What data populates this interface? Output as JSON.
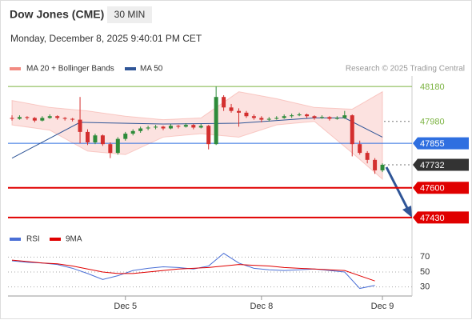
{
  "chart_data": {
    "type": "candlestick",
    "title": "Dow Jones (CME)",
    "timeframe": "30 MIN",
    "subtitle": "Monday, December 8, 2025 9:40:01 PM CET",
    "credit": "Research © 2025 Trading Central",
    "ylim": [
      47370,
      48240
    ],
    "up_color": "#2e8b3a",
    "down_color": "#d32f2f",
    "ohlc": [
      [
        48000,
        48015,
        47985,
        47995
      ],
      [
        47995,
        48015,
        47990,
        48005
      ],
      [
        48005,
        48010,
        47990,
        48000
      ],
      [
        48000,
        48005,
        47975,
        47985
      ],
      [
        47985,
        48010,
        47980,
        48000
      ],
      [
        48000,
        48020,
        47995,
        48010
      ],
      [
        48010,
        48015,
        47990,
        48000
      ],
      [
        48000,
        48005,
        47985,
        47995
      ],
      [
        47995,
        48000,
        47980,
        47990
      ],
      [
        47990,
        48120,
        47855,
        47920
      ],
      [
        47920,
        47935,
        47845,
        47860
      ],
      [
        47860,
        47910,
        47850,
        47900
      ],
      [
        47900,
        47905,
        47840,
        47850
      ],
      [
        47850,
        47860,
        47770,
        47800
      ],
      [
        47800,
        47890,
        47790,
        47880
      ],
      [
        47880,
        47920,
        47870,
        47910
      ],
      [
        47910,
        47935,
        47900,
        47925
      ],
      [
        47925,
        47950,
        47915,
        47940
      ],
      [
        47940,
        47955,
        47930,
        47945
      ],
      [
        47945,
        47960,
        47935,
        47950
      ],
      [
        47950,
        47955,
        47930,
        47940
      ],
      [
        47940,
        47965,
        47935,
        47955
      ],
      [
        47955,
        47960,
        47940,
        47950
      ],
      [
        47950,
        47970,
        47945,
        47960
      ],
      [
        47960,
        47965,
        47935,
        47945
      ],
      [
        47945,
        47965,
        47940,
        47955
      ],
      [
        47955,
        47960,
        47820,
        47850
      ],
      [
        47850,
        48180,
        47845,
        48120
      ],
      [
        48120,
        48130,
        48040,
        48060
      ],
      [
        48060,
        48080,
        48030,
        48040
      ],
      [
        48040,
        48055,
        47950,
        48030
      ],
      [
        48030,
        48040,
        48000,
        48010
      ],
      [
        48010,
        48020,
        47990,
        48000
      ],
      [
        48000,
        48010,
        47975,
        47990
      ],
      [
        47990,
        48005,
        47980,
        47995
      ],
      [
        47995,
        48010,
        47990,
        48000
      ],
      [
        48000,
        48020,
        47995,
        48010
      ],
      [
        48010,
        48025,
        48000,
        48015
      ],
      [
        48015,
        48030,
        48010,
        48020
      ],
      [
        48020,
        48025,
        48000,
        48010
      ],
      [
        48010,
        48015,
        47990,
        48000
      ],
      [
        48000,
        48015,
        47995,
        48005
      ],
      [
        48005,
        48010,
        47985,
        47995
      ],
      [
        47995,
        48010,
        47990,
        48000
      ],
      [
        48000,
        48040,
        47995,
        48015
      ],
      [
        48015,
        48020,
        47780,
        47850
      ],
      [
        47850,
        47870,
        47790,
        47800
      ],
      [
        47800,
        47810,
        47740,
        47760
      ],
      [
        47760,
        47770,
        47680,
        47700
      ],
      [
        47700,
        47740,
        47690,
        47732
      ]
    ],
    "xticks": [
      {
        "value": 15,
        "label": "Dec 5"
      },
      {
        "value": 33,
        "label": "Dec 8"
      },
      {
        "value": 49,
        "label": "Dec 9"
      }
    ],
    "bollinger": {
      "name": "MA 20 + Bollinger Bands",
      "color": "#f28b82",
      "x": [
        0,
        5,
        10,
        15,
        20,
        25,
        30,
        35,
        40,
        45,
        49
      ],
      "upper": [
        48100,
        48060,
        48040,
        48010,
        47990,
        48000,
        48150,
        48110,
        48060,
        48050,
        48150
      ],
      "lower": [
        47960,
        47930,
        47810,
        47790,
        47890,
        47910,
        47890,
        47960,
        47980,
        47800,
        47650
      ]
    },
    "ma50": {
      "name": "MA 50",
      "color": "#2f5597",
      "x": [
        0,
        9,
        20,
        30,
        40,
        44,
        49
      ],
      "values": [
        47770,
        47975,
        47965,
        47970,
        48000,
        48000,
        47890
      ]
    },
    "levels": [
      {
        "value": 48180,
        "color": "#7cb342",
        "line": "solid",
        "box": false
      },
      {
        "value": 47980,
        "color": "#7cb342",
        "line": "dotted",
        "box": false
      },
      {
        "value": 47855,
        "color": "#2f6fe0",
        "line": "solid",
        "box": true
      },
      {
        "value": 47732,
        "color": "#333333",
        "line": "dotted",
        "box": true
      },
      {
        "value": 47600,
        "color": "#e00000",
        "line": "solid",
        "box": true
      },
      {
        "value": 47430,
        "color": "#e00000",
        "line": "solid",
        "box": true
      }
    ],
    "rsi": {
      "name": "RSI",
      "color": "#4a6fd6",
      "ma_name": "9MA",
      "ma_color": "#e00000",
      "ylim": [
        20,
        80
      ],
      "yticks": [
        70,
        50,
        30
      ],
      "x": [
        0,
        2,
        4,
        6,
        8,
        10,
        12,
        14,
        16,
        18,
        20,
        22,
        24,
        26,
        28,
        30,
        32,
        34,
        36,
        38,
        40,
        42,
        44,
        46,
        48
      ],
      "values": [
        65,
        63,
        62,
        60,
        55,
        48,
        40,
        45,
        52,
        55,
        57,
        56,
        54,
        58,
        75,
        62,
        55,
        53,
        52,
        53,
        54,
        52,
        50,
        28,
        32
      ],
      "ma": [
        66,
        64,
        62,
        61,
        58,
        54,
        50,
        48,
        48,
        50,
        52,
        54,
        55,
        56,
        58,
        60,
        59,
        58,
        56,
        55,
        54,
        53,
        52,
        45,
        38
      ]
    }
  }
}
